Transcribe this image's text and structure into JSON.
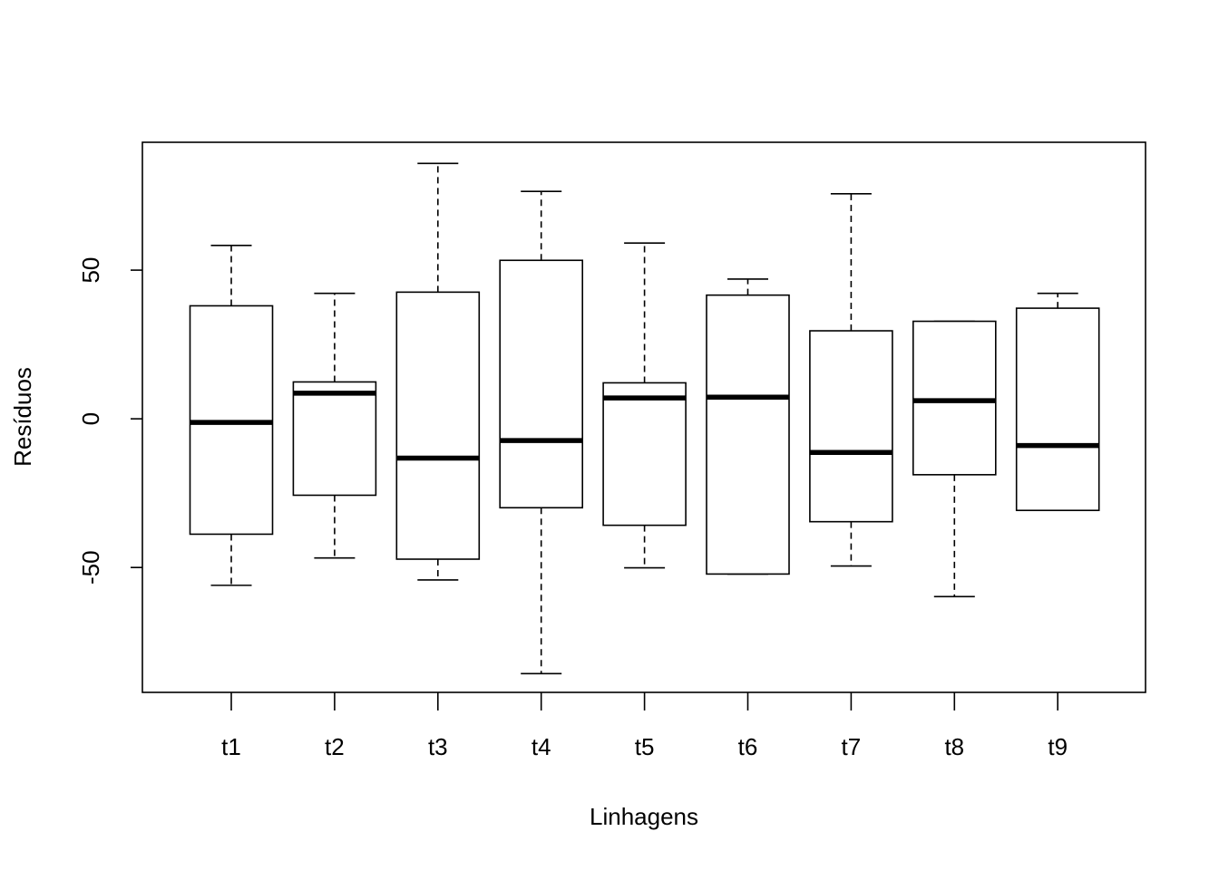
{
  "chart_data": {
    "type": "boxplot",
    "title": "",
    "xlabel": "Linhagens",
    "ylabel": "Resíduos",
    "ylim": [
      -92,
      93
    ],
    "yticks": [
      -50,
      0,
      50
    ],
    "ytick_labels": [
      "-50",
      "0",
      "50"
    ],
    "grid": false,
    "categories": [
      "t1",
      "t2",
      "t3",
      "t4",
      "t5",
      "t6",
      "t7",
      "t8",
      "t9"
    ],
    "boxes": [
      {
        "label": "t1",
        "whisker_low": -56.0,
        "q1": -38.8,
        "median": -1.2,
        "q3": 38.0,
        "whisker_high": 58.3
      },
      {
        "label": "t2",
        "whisker_low": -46.8,
        "q1": -25.7,
        "median": 8.6,
        "q3": 12.4,
        "whisker_high": 42.2
      },
      {
        "label": "t3",
        "whisker_low": -54.2,
        "q1": -47.2,
        "median": -13.2,
        "q3": 42.6,
        "whisker_high": 85.9
      },
      {
        "label": "t4",
        "whisker_low": -85.7,
        "q1": -29.9,
        "median": -7.3,
        "q3": 53.3,
        "whisker_high": 76.5
      },
      {
        "label": "t5",
        "whisker_low": -50.1,
        "q1": -35.8,
        "median": 7.0,
        "q3": 12.1,
        "whisker_high": 59.1
      },
      {
        "label": "t6",
        "whisker_low": -52.2,
        "q1": -52.2,
        "median": 7.3,
        "q3": 41.6,
        "whisker_high": 47.0
      },
      {
        "label": "t7",
        "whisker_low": -49.5,
        "q1": -34.6,
        "median": -11.3,
        "q3": 29.6,
        "whisker_high": 75.7
      },
      {
        "label": "t8",
        "whisker_low": -59.8,
        "q1": -18.8,
        "median": 6.1,
        "q3": 32.8,
        "whisker_high": 32.8
      },
      {
        "label": "t9",
        "whisker_low": -30.8,
        "q1": -30.8,
        "median": -9.0,
        "q3": 37.2,
        "whisker_high": 42.2
      }
    ]
  }
}
